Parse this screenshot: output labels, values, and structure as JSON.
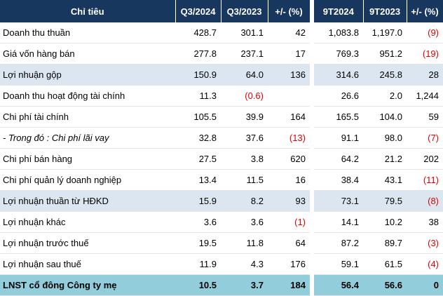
{
  "table": {
    "header": [
      "Chỉ tiêu",
      "Q3/2024",
      "Q3/2023",
      "+/- (%)",
      "9T2024",
      "9T2023",
      "+/- (%)"
    ],
    "rows": [
      [
        "Doanh thu thuần",
        "428.7",
        "301.1",
        "42",
        "1,083.8",
        "1,197.0",
        "(9)"
      ],
      [
        "Giá vốn hàng bán",
        "277.8",
        "237.1",
        "17",
        "769.3",
        "951.2",
        "(19)"
      ],
      [
        "Lợi nhuận gộp",
        "150.9",
        "64.0",
        "136",
        "314.6",
        "245.8",
        "28"
      ],
      [
        "Doanh thu hoạt động tài chính",
        "11.3",
        "(0.6)",
        null,
        "26.6",
        "2.0",
        "1,244"
      ],
      [
        "Chi phí tài chính",
        "105.5",
        "39.9",
        "164",
        "165.5",
        "104.0",
        "59"
      ],
      [
        "- Trong đó : Chi phí lãi vay",
        "32.8",
        "37.6",
        "(13)",
        "91.1",
        "98.0",
        "(7)"
      ],
      [
        "Chi phí bán hàng",
        "27.5",
        "3.8",
        "620",
        "64.2",
        "21.2",
        "202"
      ],
      [
        "Chi phí quản lý doanh nghiệp",
        "13.4",
        "11.5",
        "16",
        "38.4",
        "43.1",
        "(11)"
      ],
      [
        "Lợi nhuận thuần từ HĐKD",
        "15.9",
        "8.2",
        "93",
        "73.1",
        "79.5",
        "(8)"
      ],
      [
        "Lợi nhuận khác",
        "3.6",
        "3.6",
        "(1)",
        "14.1",
        "10.2",
        "38"
      ],
      [
        "Lợi nhuận trước thuế",
        "19.5",
        "11.8",
        "64",
        "87.2",
        "89.7",
        "(3)"
      ],
      [
        "Lợi nhuận sau thuế",
        "11.9",
        "4.3",
        "176",
        "59.1",
        "61.5",
        "(4)"
      ],
      [
        "LNST cổ đông Công ty mẹ",
        "10.5",
        "3.7",
        "184",
        "56.4",
        "56.6",
        "0"
      ]
    ]
  }
}
